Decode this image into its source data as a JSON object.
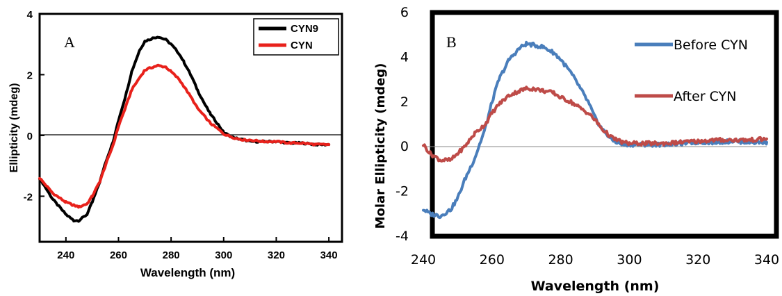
{
  "chart_data": [
    {
      "type": "line",
      "panel_label": "A",
      "xlabel": "Wavelength (nm)",
      "ylabel": "Ellipticity (mdeg)",
      "xlim": [
        230,
        345
      ],
      "ylim": [
        -3.5,
        4
      ],
      "x_ticks": [
        "240",
        "260",
        "280",
        "300",
        "320",
        "340"
      ],
      "y_ticks": [
        "4",
        "2",
        "0",
        "-2"
      ],
      "legend": "top-right",
      "series": [
        {
          "name": "CYN9",
          "color": "#000000",
          "x": [
            230,
            235,
            240,
            243,
            245,
            248,
            250,
            253,
            255,
            258,
            260,
            263,
            265,
            268,
            270,
            273,
            275,
            278,
            280,
            283,
            285,
            288,
            290,
            293,
            295,
            298,
            300,
            303,
            305,
            308,
            310,
            315,
            320,
            325,
            330,
            335,
            340
          ],
          "y": [
            -1.4,
            -2.1,
            -2.6,
            -2.8,
            -2.8,
            -2.6,
            -2.2,
            -1.5,
            -0.9,
            -0.2,
            0.5,
            1.4,
            2.1,
            2.8,
            3.1,
            3.2,
            3.25,
            3.15,
            3.0,
            2.7,
            2.4,
            1.9,
            1.5,
            1.0,
            0.7,
            0.35,
            0.1,
            -0.05,
            -0.1,
            -0.15,
            -0.2,
            -0.2,
            -0.2,
            -0.25,
            -0.25,
            -0.3,
            -0.3
          ]
        },
        {
          "name": "CYN",
          "color": "#e8211b",
          "x": [
            230,
            235,
            240,
            243,
            245,
            248,
            250,
            253,
            255,
            258,
            260,
            263,
            265,
            268,
            270,
            273,
            275,
            278,
            280,
            283,
            285,
            288,
            290,
            293,
            295,
            298,
            300,
            303,
            305,
            308,
            310,
            315,
            320,
            325,
            330,
            335,
            340
          ],
          "y": [
            -1.4,
            -1.9,
            -2.2,
            -2.3,
            -2.35,
            -2.25,
            -2.0,
            -1.5,
            -1.0,
            -0.3,
            0.3,
            1.0,
            1.5,
            1.9,
            2.15,
            2.25,
            2.3,
            2.25,
            2.1,
            1.85,
            1.6,
            1.2,
            0.9,
            0.6,
            0.4,
            0.2,
            0.05,
            -0.05,
            -0.1,
            -0.15,
            -0.15,
            -0.2,
            -0.2,
            -0.25,
            -0.25,
            -0.3,
            -0.3
          ]
        }
      ]
    },
    {
      "type": "line",
      "panel_label": "B",
      "xlabel": "Wavelength (nm)",
      "ylabel": "Molar Ellipticity (mdeg)",
      "xlim": [
        240,
        340
      ],
      "ylim": [
        -4,
        6
      ],
      "x_ticks": [
        "240",
        "260",
        "280",
        "300",
        "320",
        "340"
      ],
      "y_ticks": [
        "6",
        "4",
        "2",
        "0",
        "-2",
        "-4"
      ],
      "legend": "right",
      "series": [
        {
          "name": "Before CYN",
          "color": "#4a7ebb",
          "x": [
            240,
            242,
            245,
            248,
            250,
            252,
            255,
            258,
            260,
            262,
            265,
            268,
            270,
            272,
            275,
            278,
            280,
            283,
            285,
            288,
            290,
            292,
            295,
            298,
            300,
            305,
            310,
            315,
            320,
            325,
            330,
            335,
            340
          ],
          "y": [
            -2.8,
            -3.0,
            -3.1,
            -2.8,
            -2.3,
            -1.5,
            -0.5,
            0.8,
            2.0,
            3.0,
            3.9,
            4.4,
            4.6,
            4.55,
            4.45,
            4.2,
            3.9,
            3.3,
            2.8,
            2.0,
            1.3,
            0.8,
            0.3,
            0.1,
            0.1,
            0.1,
            0.1,
            0.15,
            0.2,
            0.2,
            0.25,
            0.2,
            0.2
          ]
        },
        {
          "name": "After CYN",
          "color": "#be4b48",
          "x": [
            240,
            242,
            245,
            248,
            250,
            252,
            255,
            258,
            260,
            262,
            265,
            268,
            270,
            272,
            275,
            278,
            280,
            283,
            285,
            288,
            290,
            292,
            295,
            298,
            300,
            305,
            310,
            315,
            320,
            325,
            330,
            335,
            340
          ],
          "y": [
            0.1,
            -0.3,
            -0.6,
            -0.6,
            -0.3,
            0.0,
            0.6,
            1.0,
            1.5,
            1.9,
            2.3,
            2.5,
            2.6,
            2.6,
            2.5,
            2.4,
            2.2,
            2.0,
            1.8,
            1.5,
            1.2,
            0.8,
            0.4,
            0.2,
            0.15,
            0.15,
            0.15,
            0.2,
            0.25,
            0.3,
            0.3,
            0.3,
            0.35
          ]
        }
      ]
    }
  ]
}
